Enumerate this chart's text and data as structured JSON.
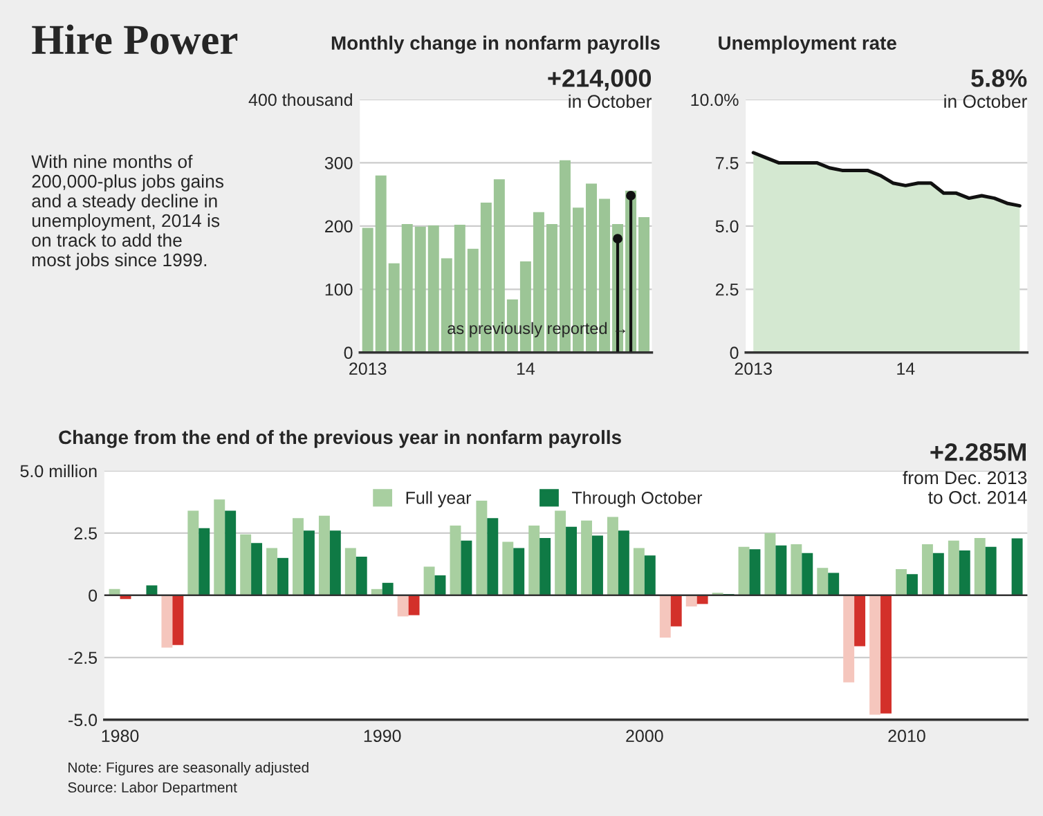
{
  "chart_data": [
    {
      "type": "other",
      "title": "Hire Power",
      "annotations": [
        "With nine months of\n200,000-plus jobs gains\nand a steady decline in\nunemployment, 2014 is\non track to add the\nmost jobs since 1999."
      ]
    },
    {
      "type": "bar",
      "title": "Monthly change in nonfarm payrolls",
      "categories": [
        "2013",
        null,
        null,
        null,
        null,
        null,
        null,
        null,
        null,
        null,
        null,
        null,
        "14",
        null,
        null,
        null,
        null,
        null,
        null,
        null,
        null,
        null
      ],
      "series": [
        {
          "color": "#9cc596",
          "values": [
            197,
            280,
            141,
            203,
            199,
            201,
            149,
            202,
            164,
            237,
            274,
            84,
            144,
            222,
            203,
            304,
            229,
            267,
            243,
            203,
            256,
            214
          ]
        },
        {
          "type": "lollipop",
          "color": "#111111",
          "values": [
            null,
            null,
            null,
            null,
            null,
            null,
            null,
            null,
            null,
            null,
            null,
            null,
            null,
            null,
            null,
            null,
            null,
            null,
            null,
            180,
            248,
            null
          ]
        }
      ],
      "ylim": [
        0,
        400
      ],
      "yticks": [
        0,
        100,
        200,
        300,
        {
          "value": 400,
          "label": "400 thousand"
        }
      ],
      "grid": "y",
      "annotations": [
        "+214,000",
        "in October",
        "as previously reported →"
      ]
    },
    {
      "type": "area",
      "title": "Unemployment rate",
      "categories": [
        "2013",
        null,
        null,
        null,
        null,
        null,
        null,
        null,
        null,
        null,
        null,
        null,
        "14",
        null,
        null,
        null,
        null,
        null,
        null,
        null,
        null,
        null
      ],
      "series": [
        {
          "color": "#d4e8d1",
          "values": [
            7.9,
            7.7,
            7.5,
            7.5,
            7.5,
            7.5,
            7.3,
            7.2,
            7.2,
            7.2,
            7.0,
            6.7,
            6.6,
            6.7,
            6.7,
            6.3,
            6.3,
            6.1,
            6.2,
            6.1,
            5.9,
            5.8
          ]
        }
      ],
      "ylim": [
        0,
        10
      ],
      "yticks": [
        0,
        2.5,
        {
          "value": 5,
          "label": "5.0"
        },
        7.5,
        {
          "value": 10,
          "label": "10.0%"
        }
      ],
      "grid": "y",
      "annotations": [
        "5.8%",
        "in October"
      ]
    },
    {
      "type": "bar",
      "title": "Change from the end of the previous year in nonfarm payrolls",
      "categories": [
        "1980",
        null,
        null,
        null,
        null,
        null,
        null,
        null,
        null,
        null,
        "1990",
        null,
        null,
        null,
        null,
        null,
        null,
        null,
        null,
        null,
        "2000",
        null,
        null,
        null,
        null,
        null,
        null,
        null,
        null,
        null,
        "2010",
        null,
        null,
        null,
        null
      ],
      "series": [
        {
          "name": "Full year",
          "color": "#a8cfa0",
          "values": [
            0.25,
            null,
            -2.1,
            3.4,
            3.85,
            2.45,
            1.9,
            3.1,
            3.2,
            1.9,
            0.25,
            -0.85,
            1.15,
            2.8,
            3.8,
            2.15,
            2.8,
            3.4,
            3.0,
            3.15,
            1.9,
            -1.7,
            -0.45,
            0.1,
            1.95,
            2.5,
            2.05,
            1.1,
            -3.5,
            -4.8,
            1.05,
            2.05,
            2.2,
            2.3,
            null
          ],
          "colors": [
            "#a8cfa0",
            "#a8cfa0",
            "#f5c6bd",
            "#a8cfa0",
            "#a8cfa0",
            "#a8cfa0",
            "#a8cfa0",
            "#a8cfa0",
            "#a8cfa0",
            "#a8cfa0",
            "#a8cfa0",
            "#f5c6bd",
            "#a8cfa0",
            "#a8cfa0",
            "#a8cfa0",
            "#a8cfa0",
            "#a8cfa0",
            "#a8cfa0",
            "#a8cfa0",
            "#a8cfa0",
            "#a8cfa0",
            "#f5c6bd",
            "#f5c6bd",
            "#a8cfa0",
            "#a8cfa0",
            "#a8cfa0",
            "#a8cfa0",
            "#a8cfa0",
            "#f5c6bd",
            "#f5c6bd",
            "#a8cfa0",
            "#a8cfa0",
            "#a8cfa0",
            "#a8cfa0",
            "#a8cfa0"
          ]
        },
        {
          "name": "Through October",
          "color": "#0f7a45",
          "values": [
            -0.15,
            0.4,
            -2.0,
            2.7,
            3.4,
            2.1,
            1.5,
            2.6,
            2.6,
            1.55,
            0.5,
            -0.8,
            0.8,
            2.2,
            3.1,
            1.9,
            2.3,
            2.75,
            2.4,
            2.6,
            1.6,
            -1.25,
            -0.35,
            0.05,
            1.85,
            2.0,
            1.7,
            0.9,
            -2.05,
            -4.75,
            0.85,
            1.7,
            1.8,
            1.95,
            2.285
          ],
          "colors": [
            "#d3302a",
            "#0f7a45",
            "#d3302a",
            "#0f7a45",
            "#0f7a45",
            "#0f7a45",
            "#0f7a45",
            "#0f7a45",
            "#0f7a45",
            "#0f7a45",
            "#0f7a45",
            "#d3302a",
            "#0f7a45",
            "#0f7a45",
            "#0f7a45",
            "#0f7a45",
            "#0f7a45",
            "#0f7a45",
            "#0f7a45",
            "#0f7a45",
            "#0f7a45",
            "#d3302a",
            "#d3302a",
            "#0f7a45",
            "#0f7a45",
            "#0f7a45",
            "#0f7a45",
            "#0f7a45",
            "#d3302a",
            "#d3302a",
            "#0f7a45",
            "#0f7a45",
            "#0f7a45",
            "#0f7a45",
            "#0f7a45"
          ]
        }
      ],
      "ylim": [
        -5,
        5
      ],
      "yticks": [
        {
          "value": -5,
          "label": "-5.0"
        },
        -2.5,
        0,
        2.5,
        {
          "value": 5,
          "label": "5.0 million"
        }
      ],
      "grid": "y",
      "legend": "top",
      "annotations": [
        "+2.285M",
        "from Dec. 2013\nto Oct. 2014",
        "Note: Figures are seasonally adjusted",
        "Source: Labor Department"
      ]
    }
  ]
}
